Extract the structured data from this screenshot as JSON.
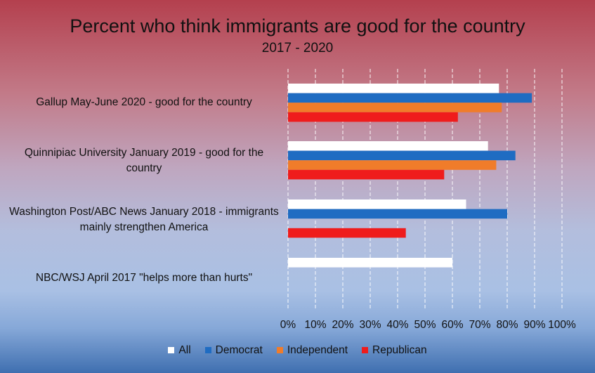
{
  "chart_data": {
    "type": "bar",
    "orientation": "horizontal",
    "title": "Percent who think immigrants are good for the country",
    "subtitle": "2017 - 2020",
    "categories": [
      "Gallup May-June 2020 - good for the country",
      "Quinnipiac University January 2019 - good for the country",
      "Washington Post/ABC News January 2018 - immigrants mainly strengthen America",
      "NBC/WSJ April 2017 \"helps more than hurts\""
    ],
    "series": [
      {
        "name": "All",
        "color": "#ffffff",
        "values": [
          77,
          73,
          65,
          60
        ]
      },
      {
        "name": "Democrat",
        "color": "#1f6cc2",
        "values": [
          89,
          83,
          80,
          null
        ]
      },
      {
        "name": "Independent",
        "color": "#f07c2a",
        "values": [
          78,
          76,
          null,
          null
        ]
      },
      {
        "name": "Republican",
        "color": "#ef1c1c",
        "values": [
          62,
          57,
          43,
          null
        ]
      }
    ],
    "xlim": [
      0,
      100
    ],
    "x_ticks": [
      "0%",
      "10%",
      "20%",
      "30%",
      "40%",
      "50%",
      "60%",
      "70%",
      "80%",
      "90%",
      "100%"
    ],
    "gridlines": true,
    "legend_position": "bottom"
  }
}
